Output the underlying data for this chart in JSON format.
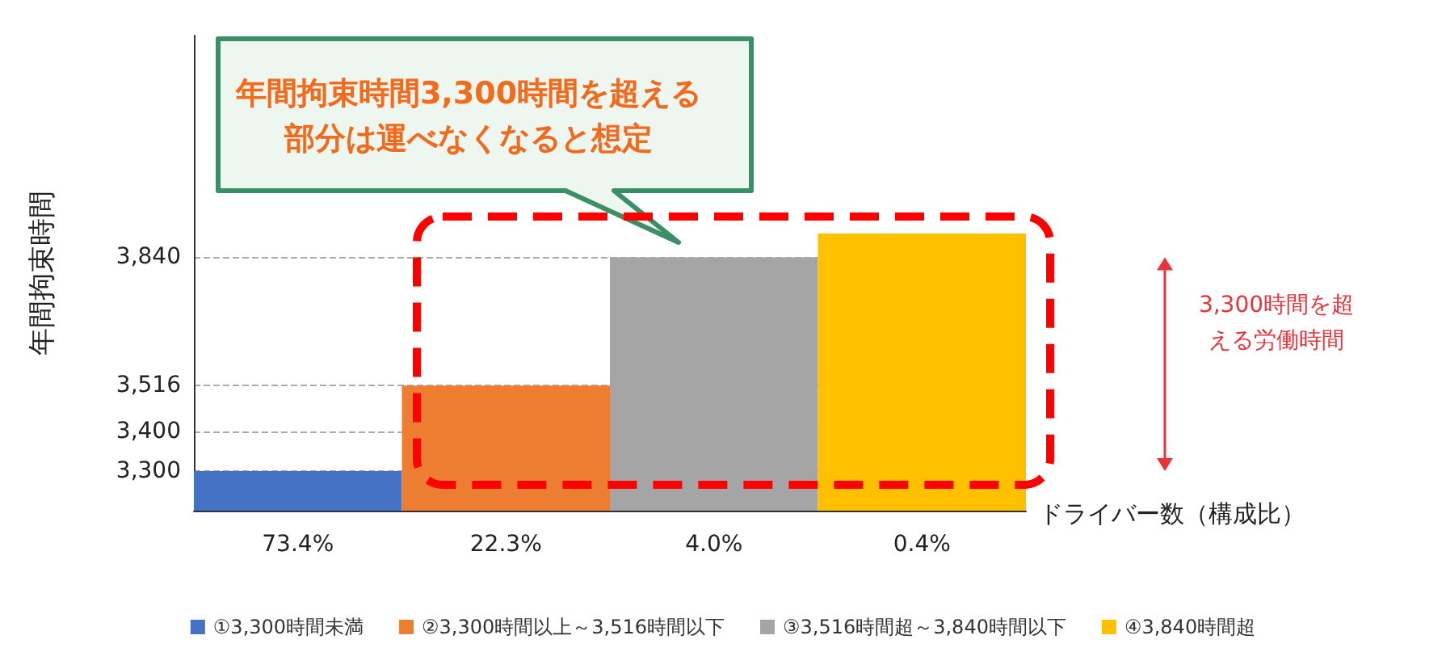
{
  "chart_data": {
    "type": "bar",
    "xlabel": "ドライバー数（構成比）",
    "ylabel": "年間拘束時間",
    "categories": [
      "73.4%",
      "22.3%",
      "4.0%",
      "0.4%"
    ],
    "series": [
      {
        "name": "①3,300時間未満",
        "color": "#4472c4",
        "values": [
          3300,
          null,
          null,
          null
        ]
      },
      {
        "name": "②3,300時間以上～3,516時間以下",
        "color": "#ed7d31",
        "values": [
          null,
          3516,
          null,
          null
        ]
      },
      {
        "name": "③3,516時間超～3,840時間以下",
        "color": "#a5a5a5",
        "values": [
          null,
          null,
          3840,
          null
        ]
      },
      {
        "name": "④3,840時間超",
        "color": "#ffc000",
        "values": [
          null,
          null,
          null,
          3900
        ]
      }
    ],
    "ylim": [
      3200,
      4400
    ],
    "yticks": [
      {
        "value": 3300,
        "label": "3,300"
      },
      {
        "value": 3400,
        "label": "3,400"
      },
      {
        "value": 3516,
        "label": "3,516"
      },
      {
        "value": 3840,
        "label": "3,840"
      }
    ],
    "grid": "y",
    "legend": "bottom",
    "annotations": [
      "年間拘束時間3,300時間を超える部分は運べなくなると想定",
      "3,300時間を超える労働時間"
    ]
  }
}
